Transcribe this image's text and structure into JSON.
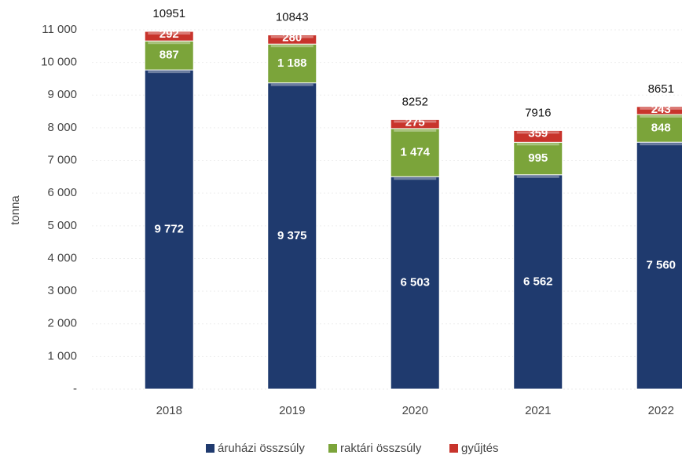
{
  "chart_data": {
    "type": "stacked_bar",
    "y_label": "tonna",
    "categories": [
      "2018",
      "2019",
      "2020",
      "2021",
      "2022"
    ],
    "series": [
      {
        "name": "áruházi összsúly",
        "color": "#1f3a6e",
        "values": [
          9772,
          9375,
          6503,
          6562,
          7560
        ],
        "value_labels": [
          "9 772",
          "9 375",
          "6 503",
          "6 562",
          "7 560"
        ]
      },
      {
        "name": "raktári összsúly",
        "color": "#7ba43a",
        "values": [
          887,
          1188,
          1474,
          995,
          848
        ],
        "value_labels": [
          "887",
          "1 188",
          "1 474",
          "995",
          "848"
        ]
      },
      {
        "name": "gyűjtés",
        "color": "#c8342c",
        "values": [
          292,
          280,
          275,
          359,
          243
        ]
      }
    ],
    "totals": [
      10951,
      10843,
      8252,
      7916,
      8651
    ],
    "ylim": [
      0,
      11000
    ],
    "yticks": [
      {
        "value": 0,
        "label": "-"
      },
      {
        "value": 1000,
        "label": "1 000"
      },
      {
        "value": 2000,
        "label": "2 000"
      },
      {
        "value": 3000,
        "label": "3 000"
      },
      {
        "value": 4000,
        "label": "4 000"
      },
      {
        "value": 5000,
        "label": "5 000"
      },
      {
        "value": 6000,
        "label": "6 000"
      },
      {
        "value": 7000,
        "label": "7 000"
      },
      {
        "value": 8000,
        "label": "8 000"
      },
      {
        "value": 9000,
        "label": "9 000"
      },
      {
        "value": 10000,
        "label": "10 000"
      },
      {
        "value": 11000,
        "label": "11 000"
      }
    ],
    "grid": true,
    "legend": "bottom"
  }
}
